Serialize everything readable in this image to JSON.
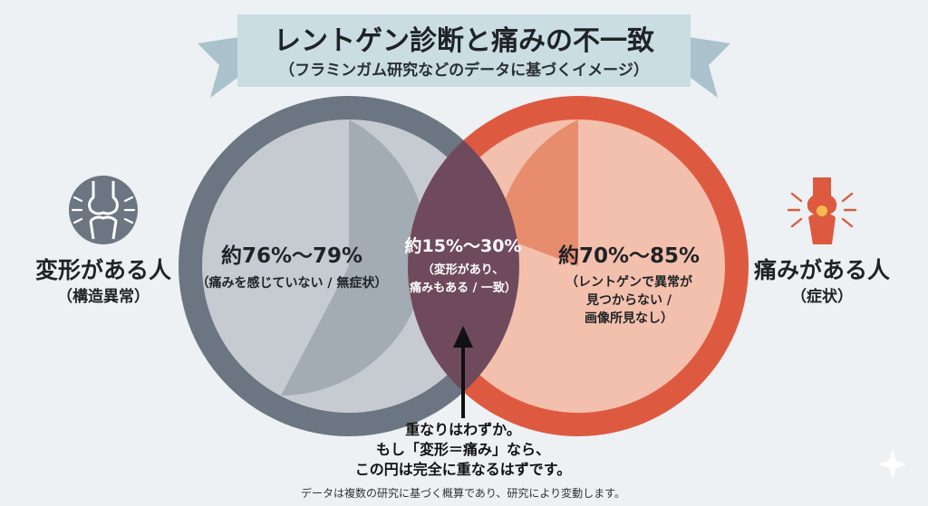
{
  "banner": {
    "title": "レントゲン診断と痛みの不一致",
    "subtitle": "（フラミンガム研究などのデータに基づくイメージ）"
  },
  "left_side": {
    "icon": "knee-joint-icon",
    "label": "変形がある人",
    "sublabel": "（構造異常）",
    "color": "#6b7682"
  },
  "right_side": {
    "icon": "painful-knee-icon",
    "label": "痛みがある人",
    "sublabel": "（症状）",
    "color": "#dd5a41"
  },
  "left_circle": {
    "percent": "約76%〜79%",
    "note": "（痛みを感じていない / 無症状）"
  },
  "overlap": {
    "percent": "約15%〜30%",
    "note_line1": "（変形があり、",
    "note_line2": "痛みもある / 一致）",
    "color": "#6e4a5c"
  },
  "right_circle": {
    "percent": "約70%〜85%",
    "note_line1": "（レントゲンで異常が",
    "note_line2": "見つからない /",
    "note_line3": "画像所見なし）"
  },
  "callout": {
    "line1": "重なりはわずか。",
    "line2": "もし「変形＝痛み」なら、",
    "line3": "この円は完全に重なるはずです。"
  },
  "footnote": "データは複数の研究に基づく概算であり、研究により変動します。"
}
